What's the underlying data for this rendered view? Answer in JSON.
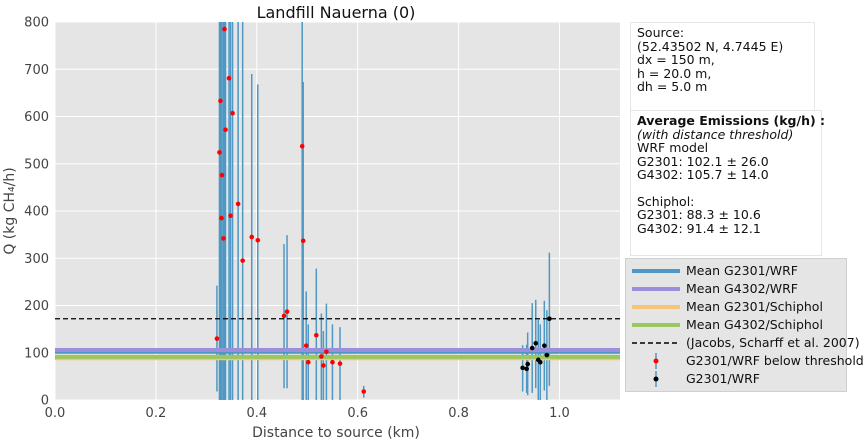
{
  "chart_data": {
    "type": "scatter",
    "title": "Landfill Nauerna (0)",
    "xlabel": "Distance to source (km)",
    "ylabel": "Q  (kg CH₄/h)",
    "xlim": [
      0.0,
      1.12
    ],
    "ylim": [
      0,
      800
    ],
    "x_ticks": [
      "0.0",
      "0.2",
      "0.4",
      "0.6",
      "0.8",
      "1.0"
    ],
    "y_ticks": [
      "0",
      "100",
      "200",
      "300",
      "400",
      "500",
      "600",
      "700",
      "800"
    ],
    "grid": true,
    "background": "#e5e5e5",
    "series": [
      {
        "name": "G2301/WRF below threshold",
        "color": "#ff0000",
        "points": [
          {
            "x": 0.321,
            "y": 130,
            "lo": 18,
            "hi": 242
          },
          {
            "x": 0.326,
            "y": 524,
            "lo": 0,
            "hi": 800
          },
          {
            "x": 0.328,
            "y": 633,
            "lo": 0,
            "hi": 800
          },
          {
            "x": 0.33,
            "y": 385,
            "lo": 0,
            "hi": 800
          },
          {
            "x": 0.331,
            "y": 476,
            "lo": 0,
            "hi": 800
          },
          {
            "x": 0.334,
            "y": 342,
            "lo": 0,
            "hi": 800
          },
          {
            "x": 0.336,
            "y": 785,
            "lo": 0,
            "hi": 800
          },
          {
            "x": 0.338,
            "y": 572,
            "lo": 0,
            "hi": 800
          },
          {
            "x": 0.345,
            "y": 681,
            "lo": 0,
            "hi": 800
          },
          {
            "x": 0.348,
            "y": 390,
            "lo": 0,
            "hi": 800
          },
          {
            "x": 0.352,
            "y": 607,
            "lo": 0,
            "hi": 800
          },
          {
            "x": 0.363,
            "y": 415,
            "lo": 0,
            "hi": 800
          },
          {
            "x": 0.372,
            "y": 295,
            "lo": 0,
            "hi": 800
          },
          {
            "x": 0.39,
            "y": 345,
            "lo": 0,
            "hi": 690
          },
          {
            "x": 0.402,
            "y": 338,
            "lo": 0,
            "hi": 668
          },
          {
            "x": 0.454,
            "y": 178,
            "lo": 25,
            "hi": 330
          },
          {
            "x": 0.46,
            "y": 187,
            "lo": 25,
            "hi": 349
          },
          {
            "x": 0.49,
            "y": 537,
            "lo": 0,
            "hi": 800
          },
          {
            "x": 0.492,
            "y": 337,
            "lo": 0,
            "hi": 673
          },
          {
            "x": 0.498,
            "y": 115,
            "lo": 0,
            "hi": 230
          },
          {
            "x": 0.502,
            "y": 80,
            "lo": 0,
            "hi": 160
          },
          {
            "x": 0.518,
            "y": 137,
            "lo": 0,
            "hi": 278
          },
          {
            "x": 0.528,
            "y": 92,
            "lo": 0,
            "hi": 183
          },
          {
            "x": 0.532,
            "y": 73,
            "lo": 0,
            "hi": 146
          },
          {
            "x": 0.538,
            "y": 102,
            "lo": 0,
            "hi": 204
          },
          {
            "x": 0.55,
            "y": 80,
            "lo": 0,
            "hi": 160
          },
          {
            "x": 0.565,
            "y": 77,
            "lo": 0,
            "hi": 154
          },
          {
            "x": 0.612,
            "y": 18,
            "lo": 5,
            "hi": 30
          }
        ]
      },
      {
        "name": "G2301/WRF",
        "color": "#000000",
        "points": [
          {
            "x": 0.927,
            "y": 68,
            "lo": 18,
            "hi": 116
          },
          {
            "x": 0.935,
            "y": 66,
            "lo": 15,
            "hi": 117
          },
          {
            "x": 0.937,
            "y": 76,
            "lo": 10,
            "hi": 143
          },
          {
            "x": 0.946,
            "y": 110,
            "lo": 15,
            "hi": 205
          },
          {
            "x": 0.953,
            "y": 120,
            "lo": 25,
            "hi": 212
          },
          {
            "x": 0.958,
            "y": 85,
            "lo": 0,
            "hi": 170
          },
          {
            "x": 0.962,
            "y": 80,
            "lo": 0,
            "hi": 160
          },
          {
            "x": 0.97,
            "y": 115,
            "lo": 20,
            "hi": 210
          },
          {
            "x": 0.975,
            "y": 95,
            "lo": 0,
            "hi": 190
          },
          {
            "x": 0.98,
            "y": 172,
            "lo": 30,
            "hi": 312
          }
        ]
      }
    ],
    "hlines": [
      {
        "name": "Mean G2301/WRF",
        "y": 102.1,
        "color": "#4f98c4",
        "style": "solid"
      },
      {
        "name": "Mean G4302/WRF",
        "y": 105.7,
        "color": "#9b8fdb",
        "style": "solid"
      },
      {
        "name": "Mean G2301/Schiphol",
        "y": 88.3,
        "color": "#f5c474",
        "style": "solid"
      },
      {
        "name": "Mean G4302/Schiphol",
        "y": 91.4,
        "color": "#9ac75f",
        "style": "solid"
      },
      {
        "name": "(Jacobs, Scharff et al. 2007)",
        "y": 172,
        "color": "#000000",
        "style": "dashed"
      }
    ],
    "legend_position": "right"
  },
  "info": {
    "source_lines": [
      "Source:",
      "(52.43502 N, 4.7445 E)",
      "dx = 150 m,",
      "h = 20.0 m,",
      "dh = 5.0 m"
    ],
    "emissions_title": "Average Emissions (kg/h) :",
    "emissions_subtitle": "(with distance threshold)",
    "wrf_lines": [
      "WRF model",
      "G2301: 102.1 ± 26.0",
      "G4302: 105.7 ± 14.0"
    ],
    "schiphol_lines": [
      "Schiphol:",
      "G2301: 88.3 ± 10.6",
      "G4302: 91.4 ± 12.1"
    ]
  }
}
